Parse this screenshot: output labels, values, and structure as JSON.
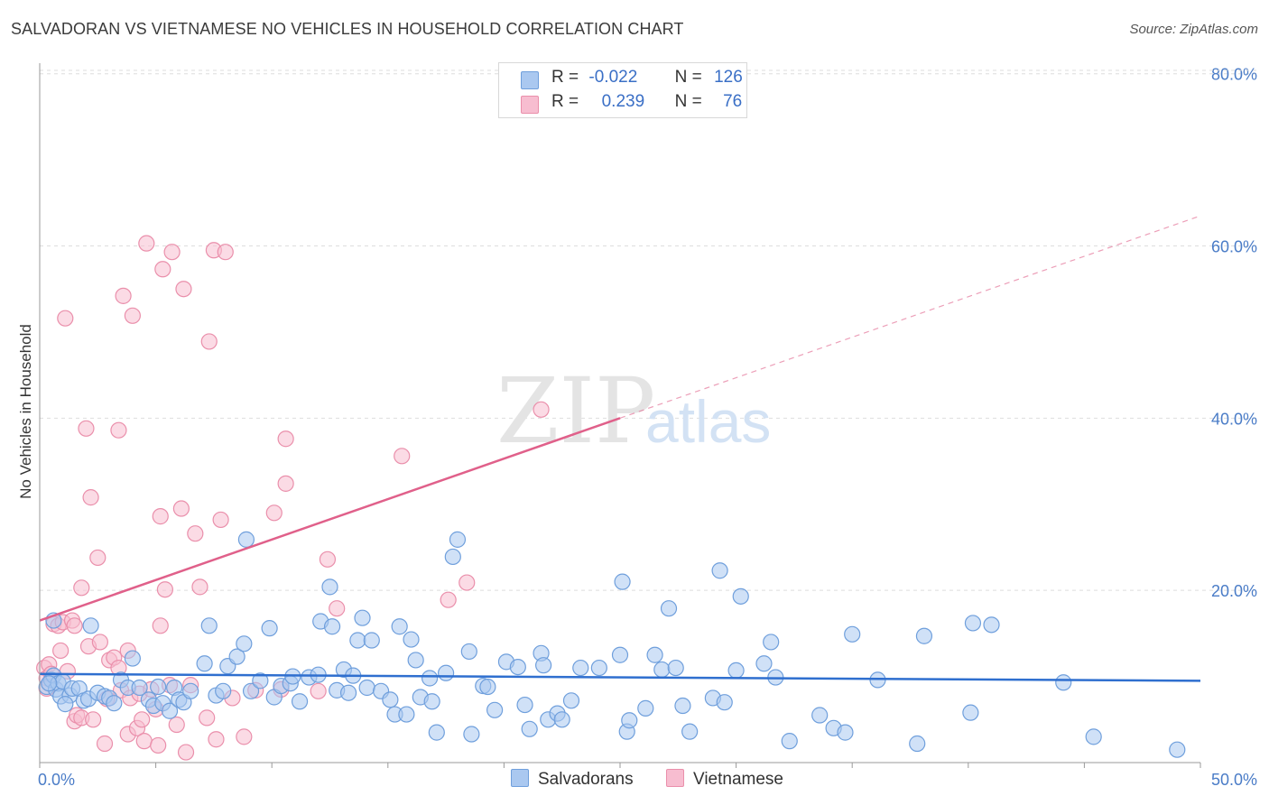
{
  "title": "SALVADORAN VS VIETNAMESE NO VEHICLES IN HOUSEHOLD CORRELATION CHART",
  "source": "Source: ZipAtlas.com",
  "watermark": {
    "zip": "ZIP",
    "atlas": "atlas"
  },
  "legend": {
    "row1": {
      "r_label": "R =",
      "r_value": "-0.022",
      "n_label": "N =",
      "n_value": "126"
    },
    "row2": {
      "r_label": "R =",
      "r_value": "0.239",
      "n_label": "N =",
      "n_value": "76"
    }
  },
  "colors": {
    "blue_fill": "#aac8f0",
    "blue_stroke": "#6f9fdc",
    "blue_line": "#2f6fcf",
    "pink_fill": "#f7bdd0",
    "pink_stroke": "#ea8fab",
    "pink_line": "#e0608a",
    "grid": "#dedede",
    "tick_text": "#4a7cc7"
  },
  "chart_data": {
    "type": "scatter",
    "title": "SALVADORAN VS VIETNAMESE NO VEHICLES IN HOUSEHOLD CORRELATION CHART",
    "xlabel": "",
    "ylabel": "No Vehicles in Household",
    "xlim": [
      0,
      50
    ],
    "ylim": [
      0,
      83
    ],
    "x_tick_labels": [
      "0.0%",
      "50.0%"
    ],
    "y_ticks": [
      20,
      40,
      60,
      80
    ],
    "y_tick_labels": [
      "20.0%",
      "40.0%",
      "60.0%",
      "80.0%"
    ],
    "legend_entries": [
      "Salvadorans",
      "Vietnamese"
    ],
    "series": [
      {
        "name": "Salvadorans",
        "R": -0.022,
        "N": 126,
        "trend": {
          "x": [
            0,
            50
          ],
          "y": [
            10.3,
            9.5
          ]
        },
        "points": [
          [
            0.3,
            8.8
          ],
          [
            0.5,
            9.6
          ],
          [
            0.6,
            10.1
          ],
          [
            0.7,
            8.5
          ],
          [
            0.8,
            9.2
          ],
          [
            0.9,
            7.7
          ],
          [
            1.0,
            9.4
          ],
          [
            1.3,
            7.8
          ],
          [
            1.4,
            8.6
          ],
          [
            1.7,
            8.6
          ],
          [
            1.9,
            7.2
          ],
          [
            2.1,
            7.4
          ],
          [
            2.5,
            8.1
          ],
          [
            2.8,
            7.7
          ],
          [
            3.0,
            7.5
          ],
          [
            3.2,
            6.9
          ],
          [
            3.5,
            9.6
          ],
          [
            3.8,
            8.7
          ],
          [
            4.0,
            12.1
          ],
          [
            4.3,
            8.7
          ],
          [
            4.7,
            7.3
          ],
          [
            4.9,
            6.6
          ],
          [
            5.1,
            8.8
          ],
          [
            5.3,
            6.9
          ],
          [
            5.6,
            6.0
          ],
          [
            5.8,
            8.7
          ],
          [
            6.0,
            7.3
          ],
          [
            6.2,
            7.0
          ],
          [
            6.5,
            8.3
          ],
          [
            7.1,
            11.5
          ],
          [
            7.3,
            15.9
          ],
          [
            7.6,
            7.8
          ],
          [
            7.9,
            8.3
          ],
          [
            8.1,
            11.2
          ],
          [
            8.5,
            12.3
          ],
          [
            8.8,
            13.8
          ],
          [
            8.9,
            25.9
          ],
          [
            9.1,
            8.3
          ],
          [
            9.5,
            9.5
          ],
          [
            9.9,
            15.6
          ],
          [
            10.1,
            7.6
          ],
          [
            10.4,
            8.9
          ],
          [
            10.8,
            9.2
          ],
          [
            10.9,
            10.0
          ],
          [
            11.2,
            7.1
          ],
          [
            11.6,
            9.9
          ],
          [
            12.0,
            10.2
          ],
          [
            12.1,
            16.4
          ],
          [
            12.5,
            20.4
          ],
          [
            12.6,
            15.8
          ],
          [
            12.8,
            8.4
          ],
          [
            13.1,
            10.8
          ],
          [
            13.3,
            8.1
          ],
          [
            13.5,
            10.1
          ],
          [
            13.7,
            14.2
          ],
          [
            13.9,
            16.8
          ],
          [
            14.1,
            8.7
          ],
          [
            14.3,
            14.2
          ],
          [
            14.7,
            8.3
          ],
          [
            15.1,
            7.3
          ],
          [
            15.3,
            5.6
          ],
          [
            15.5,
            15.8
          ],
          [
            15.8,
            5.6
          ],
          [
            16.0,
            14.3
          ],
          [
            16.2,
            11.9
          ],
          [
            16.4,
            7.6
          ],
          [
            16.8,
            9.8
          ],
          [
            16.9,
            7.1
          ],
          [
            17.1,
            3.5
          ],
          [
            17.5,
            10.4
          ],
          [
            17.8,
            23.9
          ],
          [
            18.0,
            25.9
          ],
          [
            18.5,
            12.9
          ],
          [
            18.6,
            3.3
          ],
          [
            19.1,
            8.9
          ],
          [
            19.3,
            8.8
          ],
          [
            19.6,
            6.1
          ],
          [
            20.1,
            11.7
          ],
          [
            20.6,
            11.1
          ],
          [
            20.9,
            6.7
          ],
          [
            21.1,
            3.9
          ],
          [
            21.6,
            12.7
          ],
          [
            21.7,
            11.3
          ],
          [
            21.9,
            5.0
          ],
          [
            22.3,
            5.7
          ],
          [
            22.5,
            5.0
          ],
          [
            22.9,
            7.2
          ],
          [
            23.3,
            11.0
          ],
          [
            24.1,
            11.0
          ],
          [
            25.0,
            12.5
          ],
          [
            25.1,
            21.0
          ],
          [
            25.3,
            3.6
          ],
          [
            25.4,
            4.9
          ],
          [
            26.1,
            6.3
          ],
          [
            26.5,
            12.5
          ],
          [
            26.8,
            10.8
          ],
          [
            27.1,
            17.9
          ],
          [
            27.4,
            11.0
          ],
          [
            27.7,
            6.6
          ],
          [
            28.0,
            3.6
          ],
          [
            29.0,
            7.5
          ],
          [
            29.3,
            22.3
          ],
          [
            29.5,
            7.0
          ],
          [
            30.0,
            10.7
          ],
          [
            30.2,
            19.3
          ],
          [
            31.2,
            11.5
          ],
          [
            31.5,
            14.0
          ],
          [
            31.7,
            9.9
          ],
          [
            32.3,
            2.5
          ],
          [
            33.6,
            5.5
          ],
          [
            34.2,
            4.0
          ],
          [
            34.7,
            3.5
          ],
          [
            35.0,
            14.9
          ],
          [
            36.1,
            9.6
          ],
          [
            37.8,
            2.2
          ],
          [
            38.1,
            14.7
          ],
          [
            40.1,
            5.8
          ],
          [
            41.0,
            16.0
          ],
          [
            44.1,
            9.3
          ],
          [
            45.4,
            3.0
          ],
          [
            49.0,
            1.5
          ],
          [
            0.6,
            16.5
          ],
          [
            1.1,
            6.8
          ],
          [
            2.2,
            15.9
          ],
          [
            0.4,
            9.2
          ],
          [
            40.2,
            16.2
          ]
        ]
      },
      {
        "name": "Vietnamese",
        "R": 0.239,
        "N": 76,
        "trend": {
          "x": [
            0,
            25
          ],
          "y": [
            16.5,
            40.0
          ]
        },
        "trend_extended": {
          "x": [
            25,
            50
          ],
          "y": [
            40.0,
            63.5
          ]
        },
        "points": [
          [
            0.2,
            11.0
          ],
          [
            0.3,
            9.8
          ],
          [
            0.4,
            11.4
          ],
          [
            0.5,
            10.3
          ],
          [
            0.6,
            16.1
          ],
          [
            0.8,
            15.9
          ],
          [
            0.9,
            13.0
          ],
          [
            1.0,
            16.3
          ],
          [
            1.1,
            51.6
          ],
          [
            1.2,
            10.6
          ],
          [
            1.4,
            16.5
          ],
          [
            1.5,
            4.8
          ],
          [
            1.6,
            5.5
          ],
          [
            1.8,
            5.2
          ],
          [
            1.8,
            20.3
          ],
          [
            2.0,
            38.8
          ],
          [
            2.1,
            13.5
          ],
          [
            2.2,
            30.8
          ],
          [
            2.3,
            5.0
          ],
          [
            2.5,
            23.8
          ],
          [
            2.6,
            14.0
          ],
          [
            2.8,
            2.2
          ],
          [
            2.9,
            7.4
          ],
          [
            3.0,
            11.9
          ],
          [
            3.2,
            12.2
          ],
          [
            3.4,
            38.6
          ],
          [
            3.4,
            11.0
          ],
          [
            3.5,
            8.4
          ],
          [
            3.6,
            54.2
          ],
          [
            3.8,
            13.0
          ],
          [
            3.8,
            3.3
          ],
          [
            3.9,
            7.5
          ],
          [
            4.0,
            51.9
          ],
          [
            4.2,
            4.0
          ],
          [
            4.3,
            8.0
          ],
          [
            4.4,
            5.0
          ],
          [
            4.5,
            2.5
          ],
          [
            4.6,
            60.3
          ],
          [
            4.8,
            8.5
          ],
          [
            5.0,
            6.2
          ],
          [
            5.1,
            2.0
          ],
          [
            5.2,
            28.6
          ],
          [
            5.2,
            15.9
          ],
          [
            5.3,
            57.3
          ],
          [
            5.4,
            20.1
          ],
          [
            5.6,
            9.0
          ],
          [
            5.7,
            59.3
          ],
          [
            5.9,
            4.4
          ],
          [
            6.1,
            29.5
          ],
          [
            6.2,
            55.0
          ],
          [
            6.3,
            1.2
          ],
          [
            6.5,
            9.0
          ],
          [
            6.7,
            26.6
          ],
          [
            6.9,
            20.4
          ],
          [
            7.2,
            5.2
          ],
          [
            7.3,
            48.9
          ],
          [
            7.5,
            59.5
          ],
          [
            7.6,
            2.7
          ],
          [
            7.8,
            28.2
          ],
          [
            8.0,
            59.3
          ],
          [
            8.3,
            7.5
          ],
          [
            8.8,
            3.0
          ],
          [
            9.3,
            8.4
          ],
          [
            10.1,
            29.0
          ],
          [
            10.4,
            8.5
          ],
          [
            10.6,
            32.4
          ],
          [
            10.6,
            37.6
          ],
          [
            12.0,
            8.3
          ],
          [
            12.4,
            23.6
          ],
          [
            12.8,
            17.9
          ],
          [
            15.6,
            35.6
          ],
          [
            17.6,
            18.9
          ],
          [
            18.4,
            20.9
          ],
          [
            21.6,
            41.0
          ],
          [
            0.3,
            8.6
          ],
          [
            1.5,
            15.9
          ]
        ]
      }
    ]
  }
}
